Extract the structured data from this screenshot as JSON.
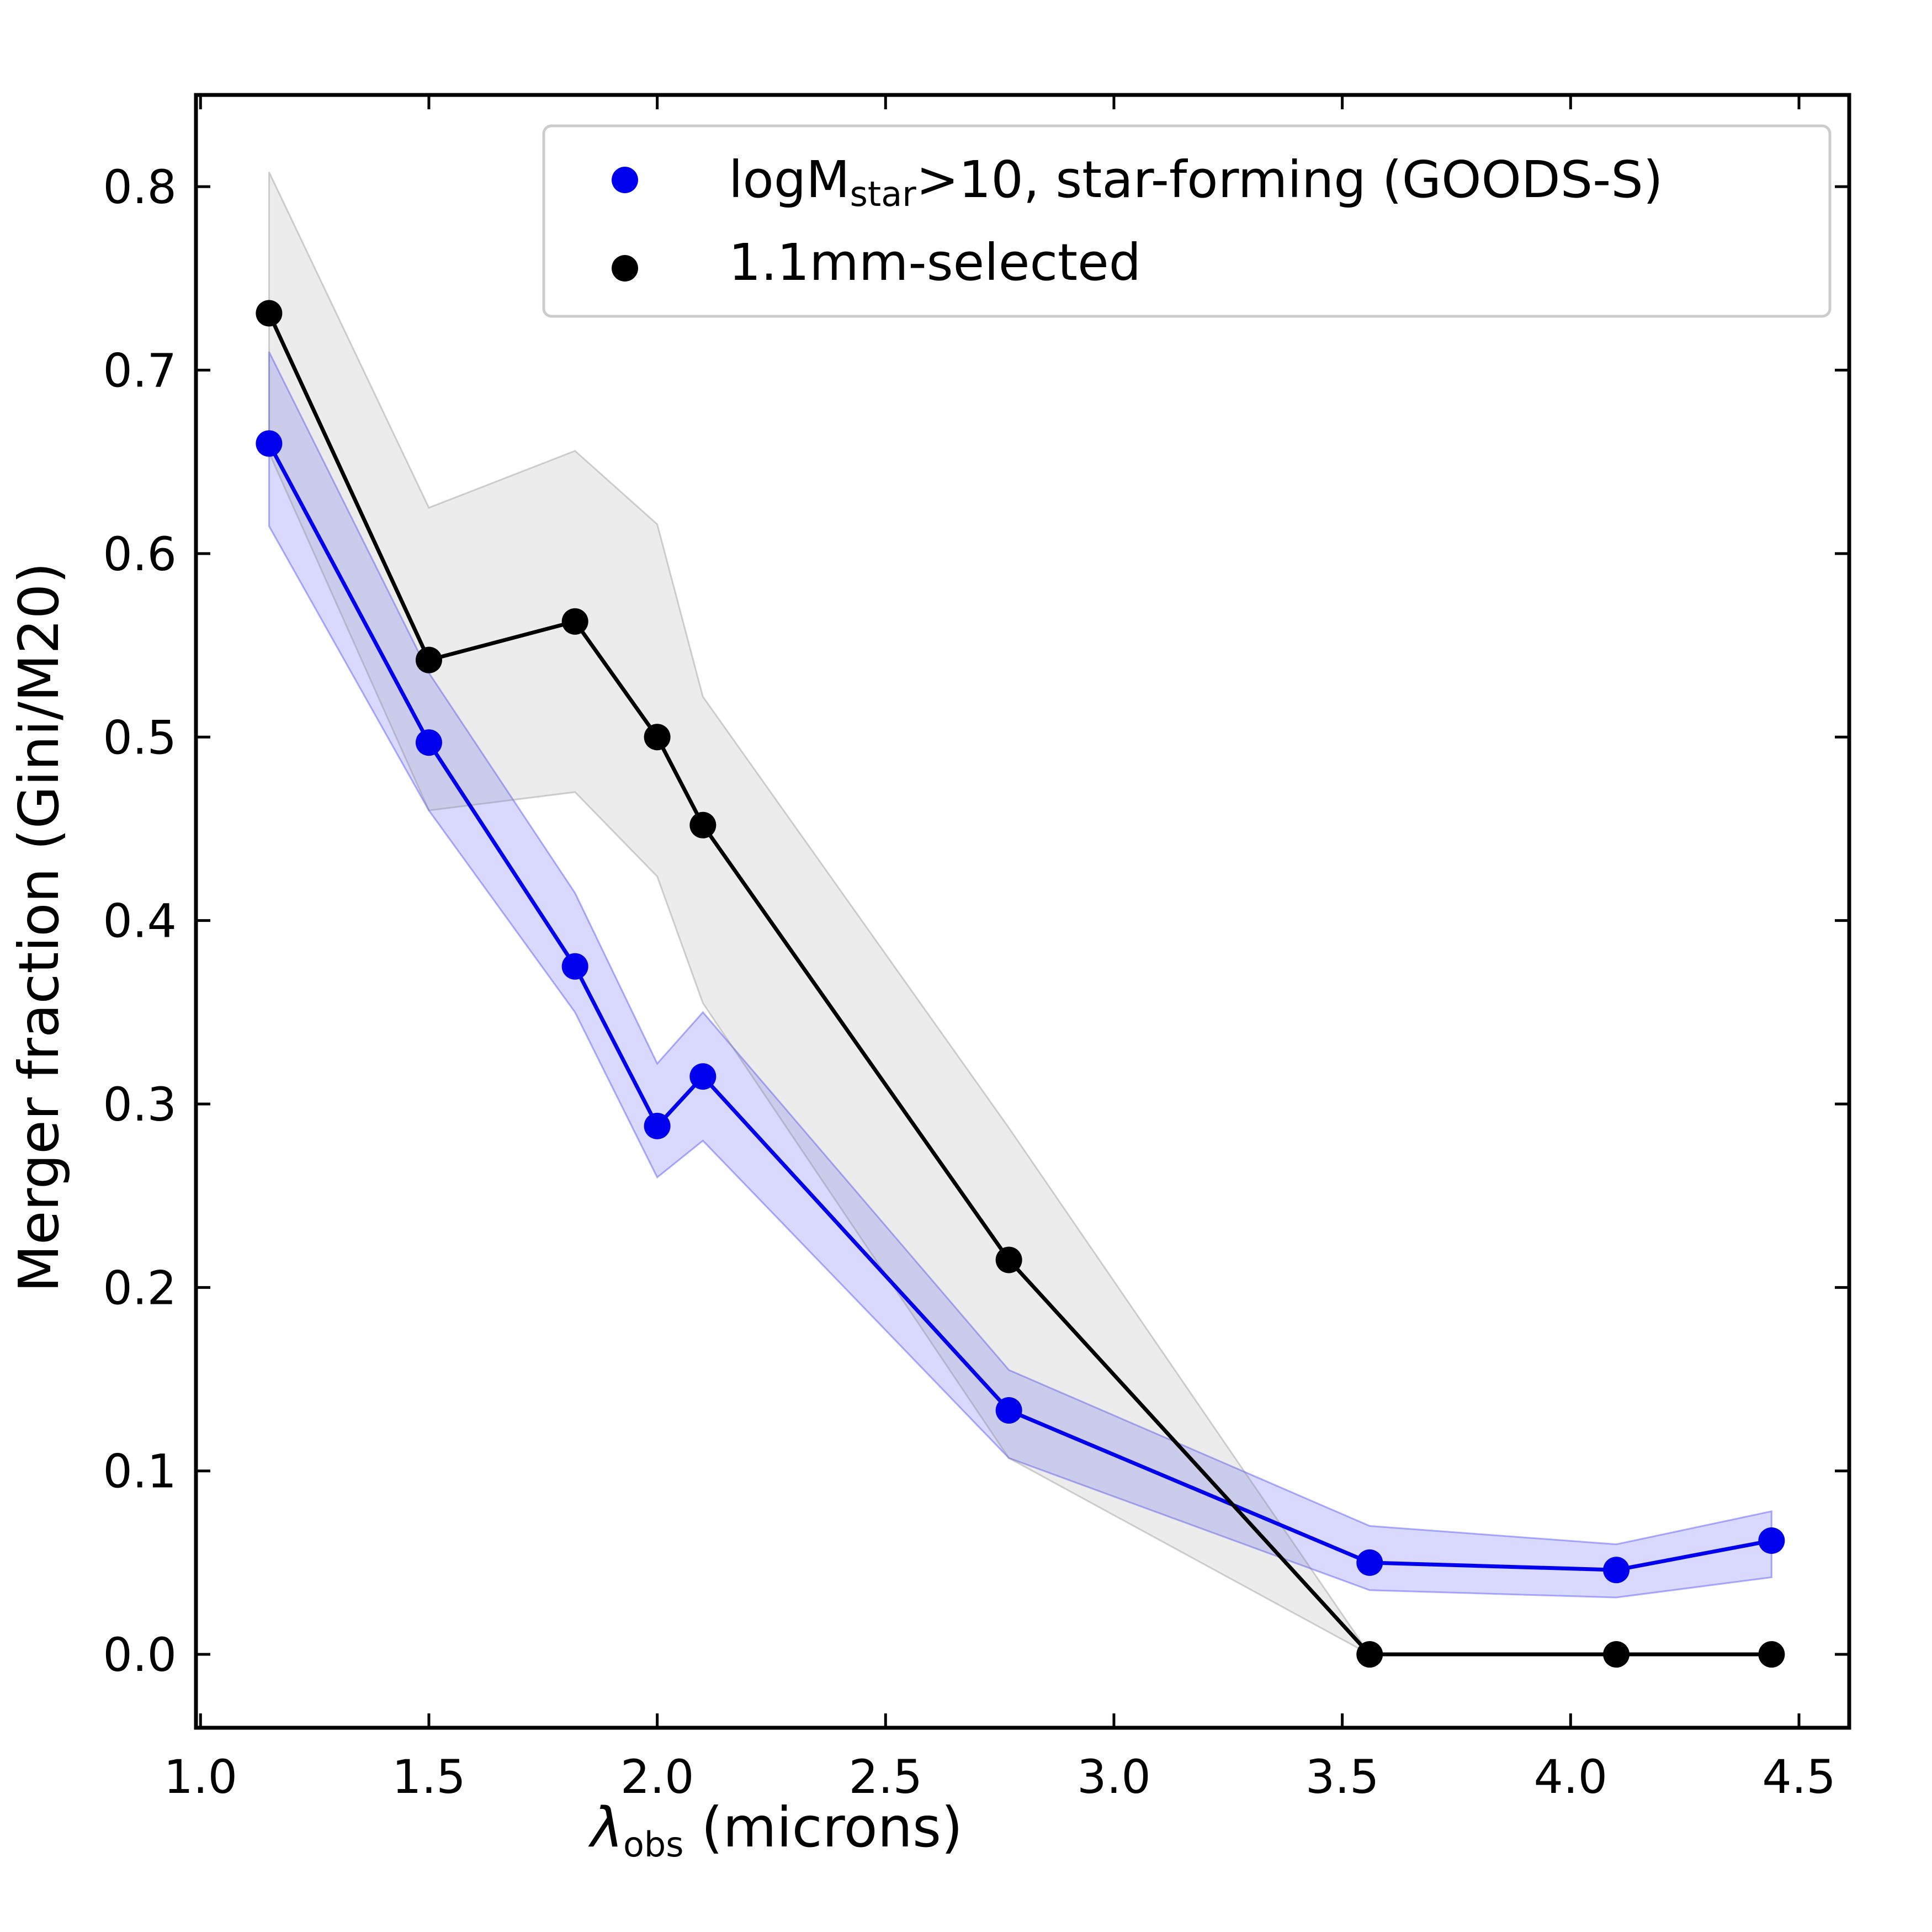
{
  "chart_data": {
    "type": "line",
    "title": "",
    "xlabel": {
      "symbol": "λ",
      "subscript": "obs",
      "rest": " (microns)"
    },
    "ylabel": "Merger fraction (Gini/M20)",
    "xlim": [
      0.99,
      4.61
    ],
    "ylim": [
      -0.04,
      0.85
    ],
    "xticks": [
      1.0,
      1.5,
      2.0,
      2.5,
      3.0,
      3.5,
      4.0,
      4.5
    ],
    "xtick_labels": [
      "1.0",
      "1.5",
      "2.0",
      "2.5",
      "3.0",
      "3.5",
      "4.0",
      "4.5"
    ],
    "yticks": [
      0.0,
      0.1,
      0.2,
      0.3,
      0.4,
      0.5,
      0.6,
      0.7,
      0.8
    ],
    "ytick_labels": [
      "0.0",
      "0.1",
      "0.2",
      "0.3",
      "0.4",
      "0.5",
      "0.6",
      "0.7",
      "0.8"
    ],
    "grid": false,
    "legend_position": "top-right",
    "series": [
      {
        "name": "logMstar>10, star-forming (GOODS-S)",
        "legend": {
          "pre": "logM",
          "sub": "star",
          "post": ">10, star-forming (GOODS-S)"
        },
        "color": "#0000ee",
        "band_color": "#2020ff",
        "x": [
          1.15,
          1.5,
          1.82,
          2.0,
          2.1,
          2.77,
          3.56,
          4.1,
          4.44
        ],
        "y": [
          0.66,
          0.497,
          0.375,
          0.288,
          0.315,
          0.133,
          0.05,
          0.046,
          0.062
        ],
        "upper": [
          0.71,
          0.535,
          0.415,
          0.322,
          0.35,
          0.155,
          0.07,
          0.06,
          0.078
        ],
        "lower": [
          0.615,
          0.46,
          0.35,
          0.26,
          0.28,
          0.107,
          0.035,
          0.031,
          0.042
        ]
      },
      {
        "name": "1.1mm-selected",
        "legend": {
          "pre": "1.1mm-selected",
          "sub": "",
          "post": ""
        },
        "color": "#000000",
        "band_color": "#808080",
        "x": [
          1.15,
          1.5,
          1.82,
          2.0,
          2.1,
          2.77,
          3.56,
          4.1,
          4.44
        ],
        "y": [
          0.731,
          0.542,
          0.563,
          0.5,
          0.452,
          0.215,
          0.0,
          0.0,
          0.0
        ],
        "upper": [
          0.808,
          0.625,
          0.656,
          0.616,
          0.522,
          0.287,
          0.0,
          0.0,
          0.0
        ],
        "lower": [
          0.655,
          0.46,
          0.47,
          0.424,
          0.355,
          0.107,
          0.0,
          0.0,
          0.0
        ]
      }
    ]
  }
}
